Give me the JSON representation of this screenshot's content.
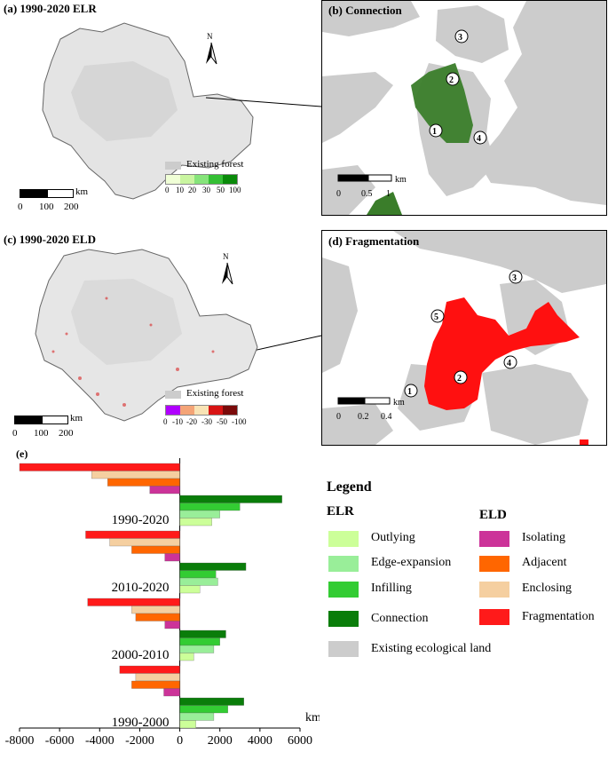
{
  "panels": {
    "a": {
      "title": "(a) 1990-2020 ELR",
      "existing_forest": "Existing forest",
      "scale_ticks": [
        "0",
        "100",
        "200"
      ],
      "scale_unit": "km",
      "color_ticks": [
        "0",
        "10",
        "20",
        "30",
        "50",
        "100"
      ],
      "colors": [
        "#f0ffd6",
        "#c9f5a0",
        "#86e47a",
        "#34bf34",
        "#0a8a0a"
      ]
    },
    "b": {
      "title": "(b) Connection",
      "scale_ticks": [
        "0",
        "0.5",
        "1"
      ],
      "scale_unit": "km",
      "markers": [
        "3",
        "2",
        "1",
        "4"
      ]
    },
    "c": {
      "title": "(c) 1990-2020 ELD",
      "existing_forest": "Existing forest",
      "scale_ticks": [
        "0",
        "100",
        "200"
      ],
      "scale_unit": "km",
      "color_ticks": [
        "0",
        "-10",
        "-20",
        "-30",
        "-50",
        "-100"
      ],
      "colors": [
        "#b000ff",
        "#f4a477",
        "#f8e3b5",
        "#d81414",
        "#7a0a0a"
      ]
    },
    "d": {
      "title": "(d) Fragmentation",
      "scale_ticks": [
        "0",
        "0.2",
        "0.4"
      ],
      "scale_unit": "km",
      "markers": [
        "3",
        "5",
        "4",
        "2",
        "1"
      ]
    },
    "e": {
      "title": "(e)"
    }
  },
  "legend": {
    "title": "Legend",
    "elr_head": "ELR",
    "eld_head": "ELD",
    "elr_items": [
      {
        "label": "Outlying",
        "color": "#ccff99"
      },
      {
        "label": "Edge-expansion",
        "color": "#99ee99"
      },
      {
        "label": "Infilling",
        "color": "#33cc33"
      },
      {
        "label": "Connection",
        "color": "#0a7d0a"
      }
    ],
    "eld_items": [
      {
        "label": "Isolating",
        "color": "#cc3399"
      },
      {
        "label": "Adjacent",
        "color": "#ff6600"
      },
      {
        "label": "Enclosing",
        "color": "#f5cfa0"
      },
      {
        "label": "Fragmentation",
        "color": "#ff1a1a"
      }
    ],
    "existing": {
      "label": "Existing ecological land",
      "color": "#cccccc"
    }
  },
  "chart_data": {
    "type": "bar",
    "orientation": "horizontal",
    "xlabel": "km²",
    "xlim": [
      -8000,
      6000
    ],
    "xticks": [
      -8000,
      -6000,
      -4000,
      -2000,
      0,
      2000,
      4000,
      6000
    ],
    "groups": [
      {
        "label": "1990-2020",
        "eld": {
          "Fragmentation": -8000,
          "Enclosing": -4400,
          "Adjacent": -3600,
          "Isolating": -1500
        },
        "elr": {
          "Connection": 5100,
          "Infilling": 3000,
          "Edge-expansion": 2000,
          "Outlying": 1600
        }
      },
      {
        "label": "2010-2020",
        "eld": {
          "Fragmentation": -4700,
          "Enclosing": -3500,
          "Adjacent": -2400,
          "Isolating": -750
        },
        "elr": {
          "Connection": 3300,
          "Infilling": 1800,
          "Edge-expansion": 1900,
          "Outlying": 1000
        }
      },
      {
        "label": "2000-2010",
        "eld": {
          "Fragmentation": -4600,
          "Enclosing": -2400,
          "Adjacent": -2200,
          "Isolating": -750
        },
        "elr": {
          "Connection": 2300,
          "Infilling": 2000,
          "Edge-expansion": 1700,
          "Outlying": 700
        }
      },
      {
        "label": "1990-2000",
        "eld": {
          "Fragmentation": -3000,
          "Enclosing": -2200,
          "Adjacent": -2400,
          "Isolating": -800
        },
        "elr": {
          "Connection": 3200,
          "Infilling": 2400,
          "Edge-expansion": 1700,
          "Outlying": 800
        }
      }
    ]
  }
}
